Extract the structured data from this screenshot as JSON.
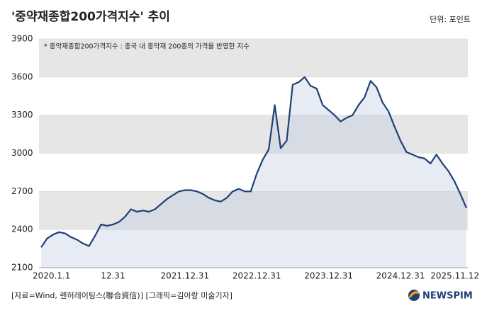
{
  "chart_data": {
    "type": "line",
    "title": "'중약재종합200가격지수' 추이",
    "unit": "단위: 포인트",
    "note": "* 중약재종합200가격지수 : 중국 내 중약재 200종의 가격을 반영한 지수",
    "source": "[자료=Wind, 롄허레이팅스(聯合資信)] [그래픽=김아랑 미술기자]",
    "logo": "NEWSPIM",
    "color": "#1f3f78",
    "categories": [
      "2020.1.1",
      null,
      null,
      null,
      null,
      null,
      null,
      null,
      null,
      null,
      null,
      null,
      "12.31",
      null,
      null,
      null,
      null,
      null,
      null,
      null,
      null,
      null,
      null,
      null,
      "2021.12.31",
      null,
      null,
      null,
      null,
      null,
      null,
      null,
      null,
      null,
      null,
      null,
      "2022.12.31",
      null,
      null,
      null,
      null,
      null,
      null,
      null,
      null,
      null,
      null,
      null,
      "2023.12.31",
      null,
      null,
      null,
      null,
      null,
      null,
      null,
      null,
      null,
      null,
      null,
      "2024.12.31",
      null,
      null,
      null,
      null,
      null,
      null,
      null,
      null,
      null,
      null,
      "2025.11.12"
    ],
    "values": [
      2260,
      2330,
      2360,
      2380,
      2370,
      2340,
      2320,
      2290,
      2270,
      2350,
      2440,
      2430,
      2440,
      2460,
      2500,
      2560,
      2540,
      2550,
      2540,
      2560,
      2600,
      2640,
      2670,
      2700,
      2710,
      2710,
      2700,
      2680,
      2650,
      2630,
      2620,
      2650,
      2700,
      2720,
      2700,
      2700,
      2840,
      2950,
      3030,
      3380,
      3040,
      3100,
      3540,
      3560,
      3600,
      3530,
      3510,
      3380,
      3340,
      3300,
      3250,
      3280,
      3300,
      3380,
      3440,
      3570,
      3520,
      3400,
      3330,
      3210,
      3100,
      3010,
      2990,
      2970,
      2960,
      2920,
      2990,
      2920,
      2860,
      2780,
      2680,
      2570
    ],
    "ylim": [
      2100,
      3900
    ],
    "yticks": [
      2100,
      2400,
      2700,
      3000,
      3300,
      3600,
      3900
    ],
    "grid": true
  }
}
